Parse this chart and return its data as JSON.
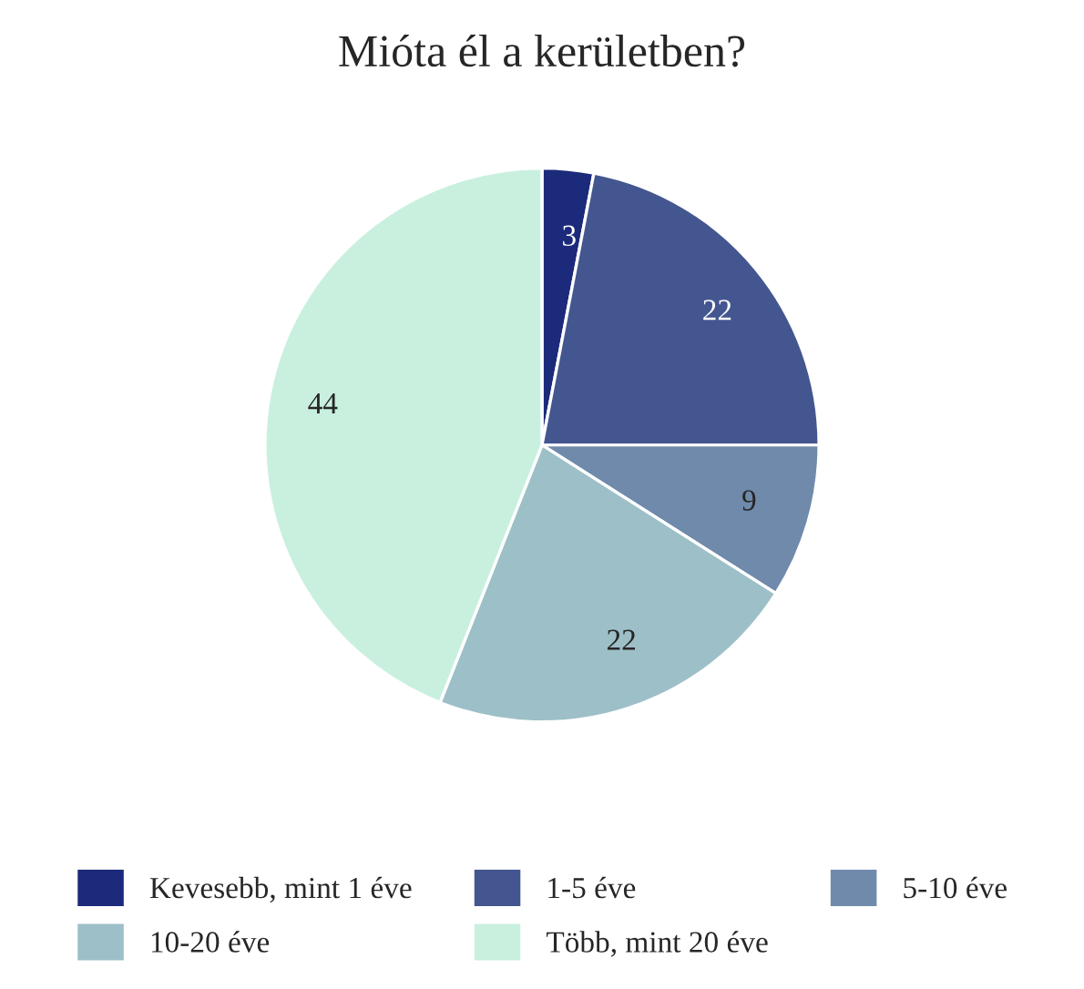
{
  "chart_data": {
    "type": "pie",
    "title": "Mióta él a kerületben?",
    "categories": [
      "Kevesebb, mint 1 éve",
      "1-5 éve",
      "5-10 éve",
      "10-20 éve",
      "Több, mint 20 éve"
    ],
    "values": [
      3,
      22,
      9,
      22,
      44
    ],
    "colors": [
      "#1b2a7a",
      "#43568f",
      "#6f8aab",
      "#9dbfc8",
      "#c9f0df"
    ],
    "data_labels": true,
    "legend": "bottom"
  }
}
